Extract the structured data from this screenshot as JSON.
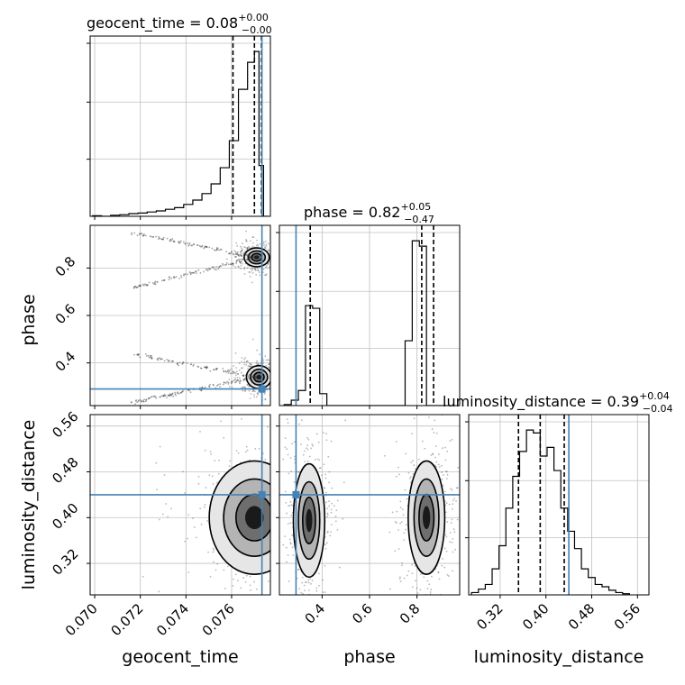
{
  "chart_data": {
    "type": "corner",
    "parameters": [
      "geocent_time",
      "phase",
      "luminosity_distance"
    ],
    "colors": {
      "truth": "#4682b4",
      "hist": "#000000",
      "grid": "#c0c0c0",
      "points": "#333333"
    },
    "titles": [
      {
        "param": "geocent_time",
        "label": "geocent_time = 0.08",
        "sup": "+0.00",
        "sub": "−0.00"
      },
      {
        "param": "phase",
        "label": "phase = 0.82",
        "sup": "+0.05",
        "sub": "−0.47"
      },
      {
        "param": "luminosity_distance",
        "label": "luminosity_distance = 0.39",
        "sup": "+0.04",
        "sub": "−0.04"
      }
    ],
    "axes": {
      "geocent_time": {
        "label": "geocent_time",
        "range": [
          0.0698,
          0.0777
        ],
        "ticks": [
          0.07,
          0.072,
          0.074,
          0.076
        ],
        "tick_labels": [
          "0.070",
          "0.072",
          "0.074",
          "0.076"
        ]
      },
      "phase": {
        "label": "phase",
        "range": [
          0.22,
          0.98
        ],
        "ticks": [
          0.4,
          0.6,
          0.8
        ],
        "tick_labels": [
          "0.4",
          "0.6",
          "0.8"
        ]
      },
      "luminosity_distance": {
        "label": "luminosity_distance",
        "range": [
          0.265,
          0.58
        ],
        "ticks": [
          0.32,
          0.4,
          0.48,
          0.56
        ],
        "tick_labels": [
          "0.32",
          "0.40",
          "0.48",
          "0.56"
        ]
      }
    },
    "truths": {
      "geocent_time": 0.07733,
      "phase": 0.29,
      "luminosity_distance": 0.44
    },
    "quantiles": {
      "geocent_time": [
        0.07606,
        0.077,
        0.07731
      ],
      "phase": [
        0.35,
        0.82,
        0.87
      ],
      "luminosity_distance": [
        0.352,
        0.39,
        0.432
      ]
    },
    "histograms": {
      "geocent_time": {
        "edges": [
          0.0699,
          0.0703,
          0.0707,
          0.0711,
          0.0715,
          0.0719,
          0.0723,
          0.0727,
          0.0731,
          0.0735,
          0.0739,
          0.0743,
          0.0747,
          0.0751,
          0.0755,
          0.0759,
          0.0763,
          0.0767,
          0.077,
          0.0772,
          0.0774,
          0.0776
        ],
        "counts": [
          1,
          0,
          2,
          3,
          5,
          6,
          8,
          10,
          13,
          16,
          22,
          30,
          42,
          60,
          90,
          140,
          235,
          285,
          305,
          94,
          0
        ]
      },
      "phase": {
        "edges": [
          0.24,
          0.27,
          0.3,
          0.33,
          0.36,
          0.39,
          0.42,
          0.45,
          0.48,
          0.51,
          0.54,
          0.57,
          0.6,
          0.63,
          0.66,
          0.69,
          0.72,
          0.75,
          0.78,
          0.81,
          0.84,
          0.87,
          0.9,
          0.93
        ],
        "counts": [
          2,
          10,
          28,
          185,
          180,
          22,
          0,
          0,
          0,
          0,
          0,
          0,
          0,
          0,
          0,
          0,
          0,
          120,
          305,
          295,
          0,
          0,
          0
        ]
      },
      "luminosity_distance": {
        "edges": [
          0.27,
          0.282,
          0.294,
          0.306,
          0.318,
          0.33,
          0.342,
          0.354,
          0.366,
          0.378,
          0.39,
          0.402,
          0.414,
          0.426,
          0.438,
          0.45,
          0.462,
          0.474,
          0.486,
          0.498,
          0.51,
          0.522,
          0.534,
          0.546
        ],
        "counts": [
          4,
          10,
          18,
          45,
          85,
          150,
          205,
          248,
          285,
          280,
          240,
          255,
          215,
          150,
          110,
          80,
          45,
          30,
          18,
          14,
          8,
          4,
          2
        ]
      }
    },
    "clusters": [
      {
        "pair": [
          "geocent_time",
          "phase"
        ],
        "center": [
          0.0771,
          0.845
        ],
        "spread": [
          0.00025,
          0.018
        ]
      },
      {
        "pair": [
          "geocent_time",
          "phase"
        ],
        "center": [
          0.0772,
          0.34
        ],
        "spread": [
          0.00025,
          0.022
        ]
      },
      {
        "pair": [
          "geocent_time",
          "luminosity_distance"
        ],
        "center": [
          0.077,
          0.4
        ],
        "spread": [
          0.0009,
          0.045
        ]
      },
      {
        "pair": [
          "phase",
          "luminosity_distance"
        ],
        "center": [
          0.345,
          0.395
        ],
        "spread": [
          0.03,
          0.045
        ]
      },
      {
        "pair": [
          "phase",
          "luminosity_distance"
        ],
        "center": [
          0.84,
          0.4
        ],
        "spread": [
          0.035,
          0.045
        ]
      }
    ]
  }
}
